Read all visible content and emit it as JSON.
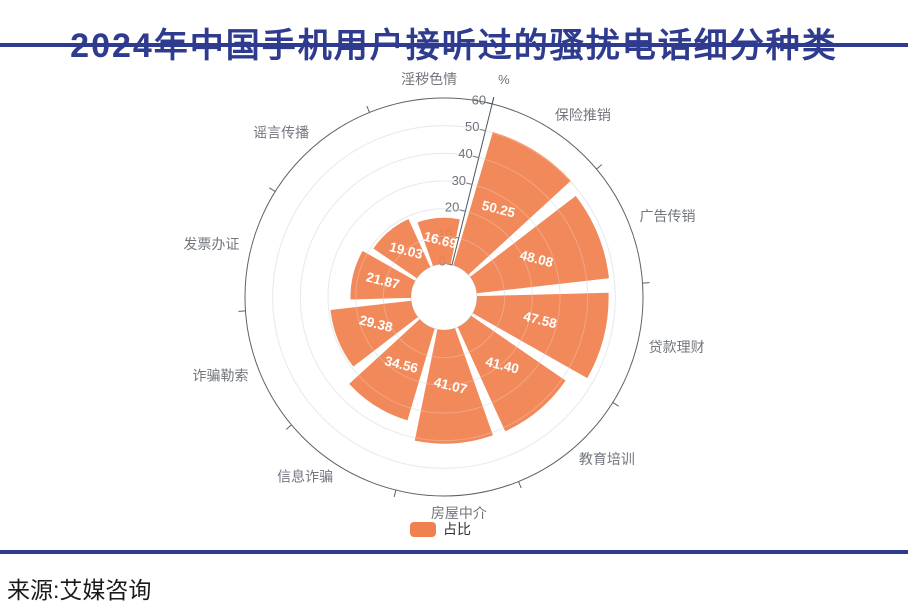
{
  "title": "2024年中国手机用户接听过的骚扰电话细分种类",
  "source": "来源:艾媒咨询",
  "legend": {
    "label": "占比"
  },
  "colors": {
    "accent_navy": "#2E3B8E",
    "bar_orange": "#F0804D",
    "value_text": "#FFFFFF",
    "axis_tick_text": "#6E7079",
    "category_text": "#72767D",
    "grid_line": "#E0E3EA",
    "outer_circle": "#5D6269",
    "axis_line": "#4E565E",
    "inner_circle": "#DCDFE6",
    "legend_text": "#333333",
    "source_text": "#1A1A1A"
  },
  "chart_data": {
    "type": "rose",
    "title": "2024年中国手机用户接听过的骚扰电话细分种类",
    "series_name": "占比",
    "categories": [
      "保险推销",
      "广告传销",
      "贷款理财",
      "教育培训",
      "房屋中介",
      "信息诈骗",
      "诈骗勒索",
      "发票办证",
      "谣言传播",
      "淫秽色情"
    ],
    "values": [
      50.25,
      48.08,
      47.58,
      41.4,
      41.07,
      34.56,
      29.38,
      21.87,
      19.03,
      16.69
    ],
    "value_labels": [
      "50.25",
      "48.08",
      "47.58",
      "41.40",
      "41.07",
      "34.56",
      "29.38",
      "21.87",
      "19.03",
      "16.69"
    ],
    "radial_axis": {
      "name": "%",
      "min": 0,
      "max": 60,
      "tick_interval": 10,
      "tick_labels": [
        "0",
        "10",
        "20",
        "30",
        "40",
        "50",
        "60"
      ]
    },
    "start_angle_deg": 76,
    "clockwise": true,
    "slot_angle_deg": 36,
    "sector_pad_deg": 2.5,
    "grid": true,
    "legend_position": "bottom",
    "value_label_rotation_deg": 14
  }
}
